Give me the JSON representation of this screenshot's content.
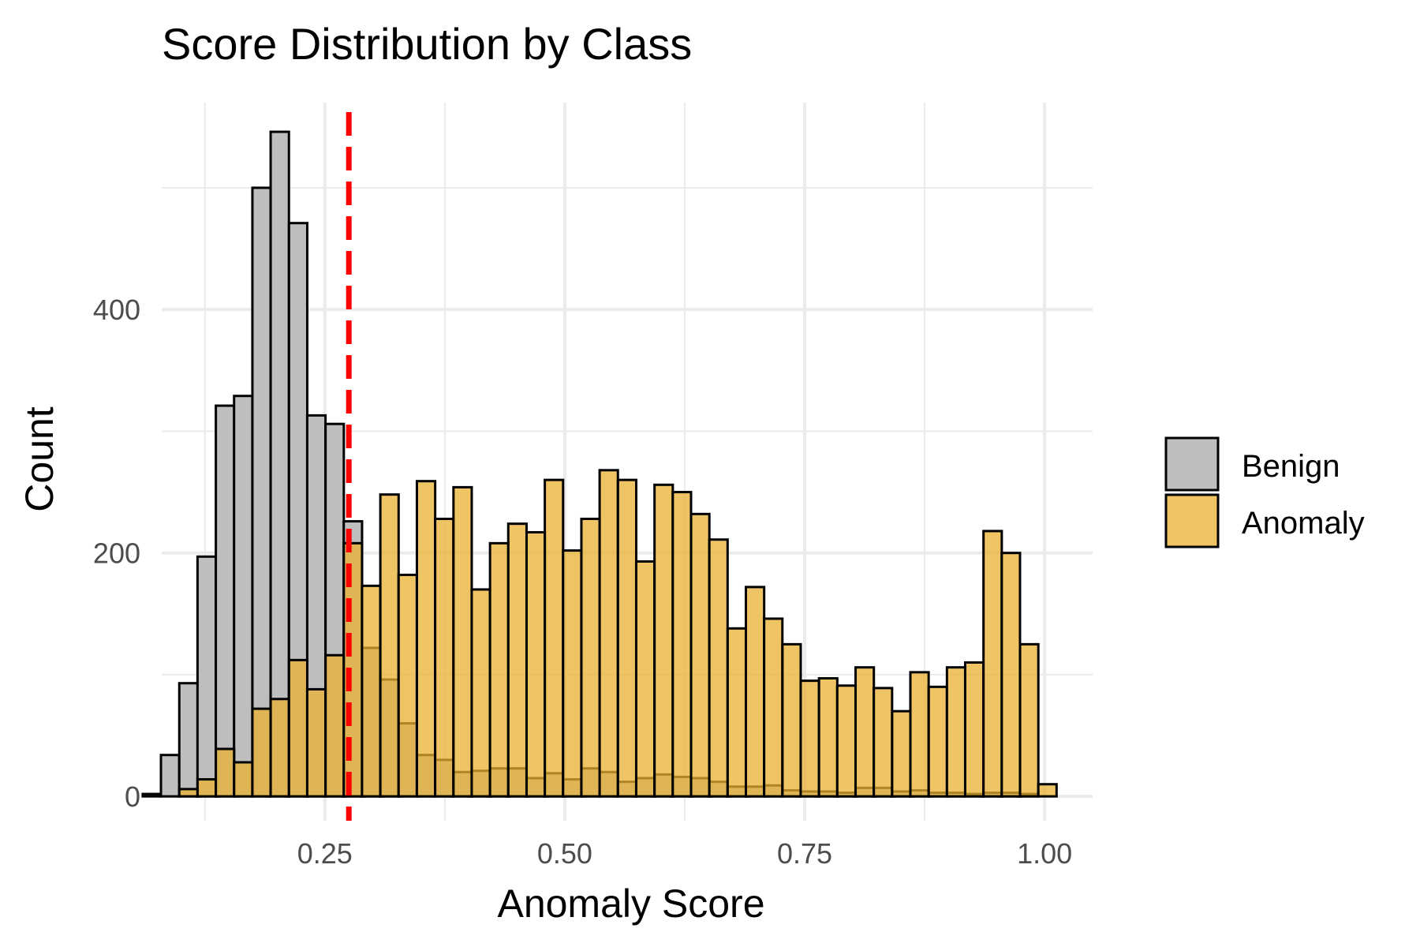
{
  "chart_data": {
    "type": "bar",
    "title": "Score Distribution by Class",
    "xlabel": "Anomaly Score",
    "ylabel": "Count",
    "xlim": [
      0.08,
      1.05
    ],
    "ylim": [
      -20,
      570
    ],
    "x_ticks": [
      0.25,
      0.5,
      0.75,
      1.0
    ],
    "x_tick_labels": [
      "0.25",
      "0.50",
      "0.75",
      "1.00"
    ],
    "y_ticks": [
      0,
      200,
      400
    ],
    "y_tick_labels": [
      "0",
      "200",
      "400"
    ],
    "grid": true,
    "legend_position": "right",
    "threshold": 0.275,
    "threshold_color": "#ff0000",
    "bin_width": 0.01905,
    "bin_starts": [
      0.0602,
      0.0792,
      0.0983,
      0.1173,
      0.1364,
      0.1554,
      0.1745,
      0.1935,
      0.2126,
      0.2316,
      0.2507,
      0.2697,
      0.2887,
      0.3078,
      0.3268,
      0.3459,
      0.3649,
      0.384,
      0.403,
      0.4221,
      0.4411,
      0.4602,
      0.4792,
      0.4982,
      0.5173,
      0.5363,
      0.5554,
      0.5744,
      0.5935,
      0.6125,
      0.6316,
      0.6506,
      0.6697,
      0.6887,
      0.7077,
      0.7268,
      0.7458,
      0.7649,
      0.7839,
      0.803,
      0.822,
      0.8411,
      0.8601,
      0.8792,
      0.8982,
      0.9172,
      0.9363,
      0.9553,
      0.9744,
      0.9934
    ],
    "series": [
      {
        "name": "Benign",
        "color": "#bebebe",
        "values": [
          2,
          34,
          93,
          197,
          321,
          329,
          500,
          546,
          471,
          313,
          306,
          226,
          122,
          96,
          60,
          34,
          30,
          20,
          21,
          23,
          23,
          15,
          19,
          14,
          23,
          20,
          12,
          15,
          18,
          16,
          15,
          12,
          8,
          8,
          9,
          5,
          4,
          4,
          3,
          7,
          7,
          4,
          5,
          3,
          3,
          2,
          3,
          3,
          2,
          0
        ]
      },
      {
        "name": "Anomaly",
        "color": "#e8b030",
        "values": [
          0,
          0,
          6,
          14,
          39,
          28,
          72,
          80,
          112,
          88,
          116,
          208,
          173,
          248,
          182,
          259,
          228,
          254,
          170,
          208,
          224,
          217,
          260,
          202,
          228,
          268,
          260,
          193,
          256,
          250,
          232,
          211,
          138,
          172,
          146,
          125,
          95,
          97,
          91,
          106,
          89,
          70,
          102,
          90,
          106,
          110,
          218,
          200,
          125,
          10
        ]
      }
    ]
  }
}
